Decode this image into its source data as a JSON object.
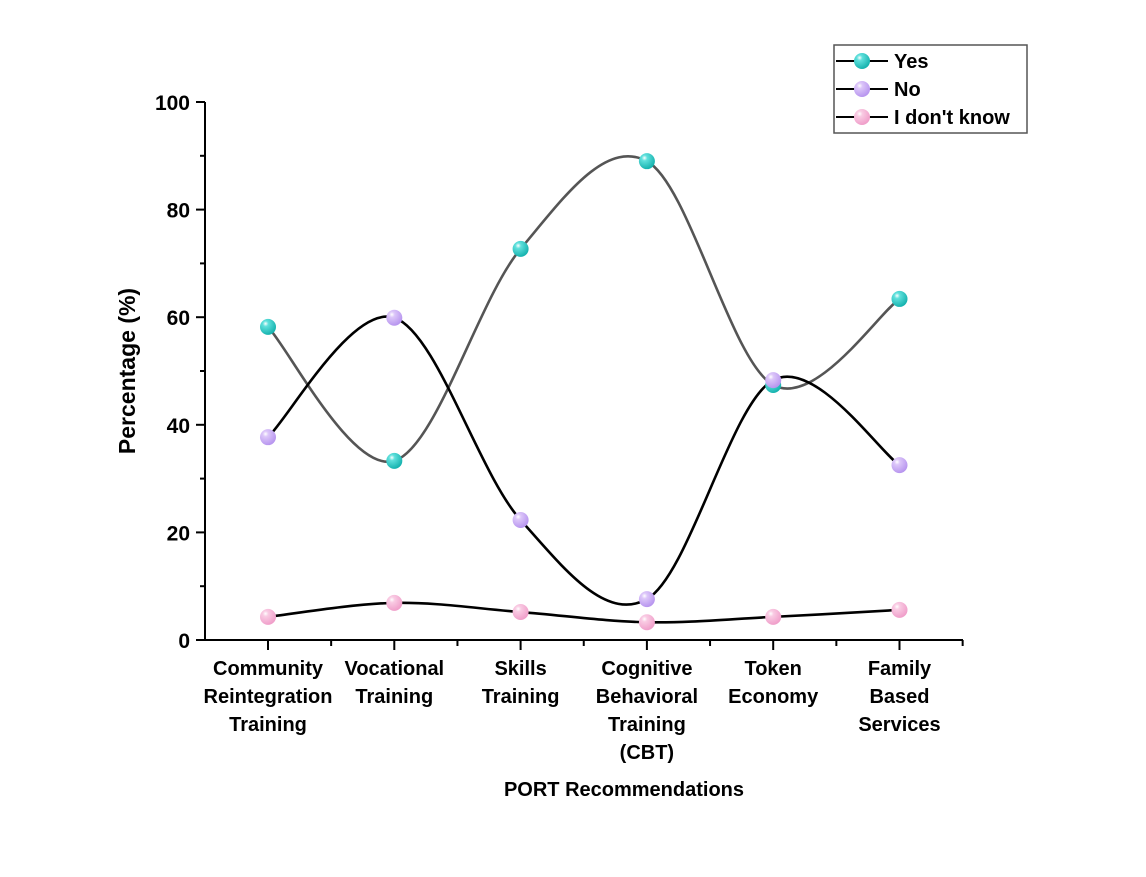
{
  "chart_data": {
    "type": "line",
    "title": "",
    "xlabel": "PORT Recommendations",
    "ylabel": "Percentage (%)",
    "ylim": [
      0,
      100
    ],
    "yticks": [
      0,
      20,
      40,
      60,
      80,
      100
    ],
    "grid": false,
    "smooth": true,
    "legend_position": "top-right",
    "categories": [
      [
        "Community",
        "Reintegration",
        "Training"
      ],
      [
        "Vocational",
        "Training"
      ],
      [
        "Skills",
        "Training"
      ],
      [
        "Cognitive",
        "Behavioral",
        "Training",
        "(CBT)"
      ],
      [
        "Token",
        "Economy"
      ],
      [
        "Family",
        "Based",
        "Services"
      ]
    ],
    "series": [
      {
        "name": "Yes",
        "marker_color": "#20c4c0",
        "line_color": "#555555",
        "values": [
          58.2,
          33.3,
          72.7,
          89.0,
          47.4,
          63.4
        ]
      },
      {
        "name": "No",
        "marker_color": "#c8a8f4",
        "line_color": "#000000",
        "values": [
          37.7,
          59.9,
          22.3,
          7.6,
          48.3,
          32.5
        ]
      },
      {
        "name": "I don't know",
        "marker_color": "#f6b2d6",
        "line_color": "#000000",
        "values": [
          4.3,
          6.9,
          5.2,
          3.3,
          4.3,
          5.6
        ]
      }
    ]
  }
}
